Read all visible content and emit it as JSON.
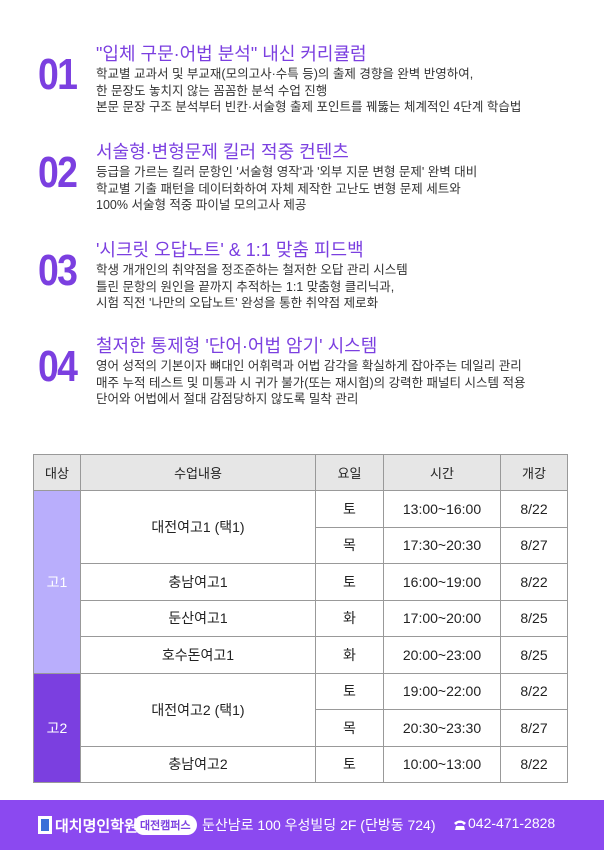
{
  "features": [
    {
      "number": "01",
      "title": "\"입체 구문·어법 분석\" 내신 커리큘럼",
      "lines": [
        "학교별 교과서 및 부교재(모의고사·수특 등)의 출제 경향을 완벽 반영하여,",
        "한 문장도 놓치지 않는 꼼꼼한 분석 수업 진행",
        "본문 문장 구조 분석부터 빈칸·서술형 출제 포인트를 꿰뚫는 체계적인 4단계 학습법"
      ]
    },
    {
      "number": "02",
      "title": "서술형·변형문제 킬러 적중 컨텐츠",
      "lines": [
        "등급을 가르는 킬러 문항인 '서술형 영작'과 '외부 지문 변형 문제' 완벽 대비",
        "학교별 기출 패턴을 데이터화하여 자체 제작한 고난도 변형 문제 세트와",
        "100% 서술형 적중 파이널 모의고사 제공"
      ]
    },
    {
      "number": "03",
      "title": "'시크릿 오답노트' & 1:1 맞춤 피드백",
      "lines": [
        "학생 개개인의 취약점을 정조준하는 철저한 오답 관리 시스템",
        "틀린 문항의 원인을 끝까지 추적하는 1:1 맞춤형 클리닉과,",
        "시험 직전 '나만의 오답노트' 완성을 통한 취약점 제로화"
      ]
    },
    {
      "number": "04",
      "title": "철저한 통제형 '단어·어법 암기' 시스템",
      "lines": [
        "영어 성적의 기본이자 뼈대인 어휘력과 어법 감각을 확실하게 잡아주는 데일리 관리",
        "매주 누적 테스트 및 미통과 시 귀가 불가(또는 재시험)의 강력한 패널티 시스템 적용",
        "단어와 어법에서 절대 감점당하지 않도록 밀착 관리"
      ]
    }
  ],
  "table": {
    "header": [
      "대상",
      "수업내용",
      "요일",
      "시간",
      "개강"
    ],
    "groups": [
      {
        "label": "고1",
        "classes": [
          {
            "name": "대전여고1 (택1)",
            "sessions": [
              {
                "day": "토",
                "time": "13:00~16:00",
                "start": "8/22"
              },
              {
                "day": "목",
                "time": "17:30~20:30",
                "start": "8/27"
              }
            ]
          },
          {
            "name": "충남여고1",
            "sessions": [
              {
                "day": "토",
                "time": "16:00~19:00",
                "start": "8/22"
              }
            ]
          },
          {
            "name": "둔산여고1",
            "sessions": [
              {
                "day": "화",
                "time": "17:00~20:00",
                "start": "8/25"
              }
            ]
          },
          {
            "name": "호수돈여고1",
            "sessions": [
              {
                "day": "화",
                "time": "20:00~23:00",
                "start": "8/25"
              }
            ]
          }
        ]
      },
      {
        "label": "고2",
        "classes": [
          {
            "name": "대전여고2 (택1)",
            "sessions": [
              {
                "day": "토",
                "time": "19:00~22:00",
                "start": "8/22"
              },
              {
                "day": "목",
                "time": "20:30~23:30",
                "start": "8/27"
              }
            ]
          },
          {
            "name": "충남여고2",
            "sessions": [
              {
                "day": "토",
                "time": "10:00~13:00",
                "start": "8/22"
              }
            ]
          }
        ]
      }
    ]
  },
  "footer": {
    "brand": "대치명인학원",
    "campus": "대전캠퍼스",
    "address": "둔산남로 100 우성빌딩 2F (단방동 724)",
    "phone": "042-471-2828"
  }
}
